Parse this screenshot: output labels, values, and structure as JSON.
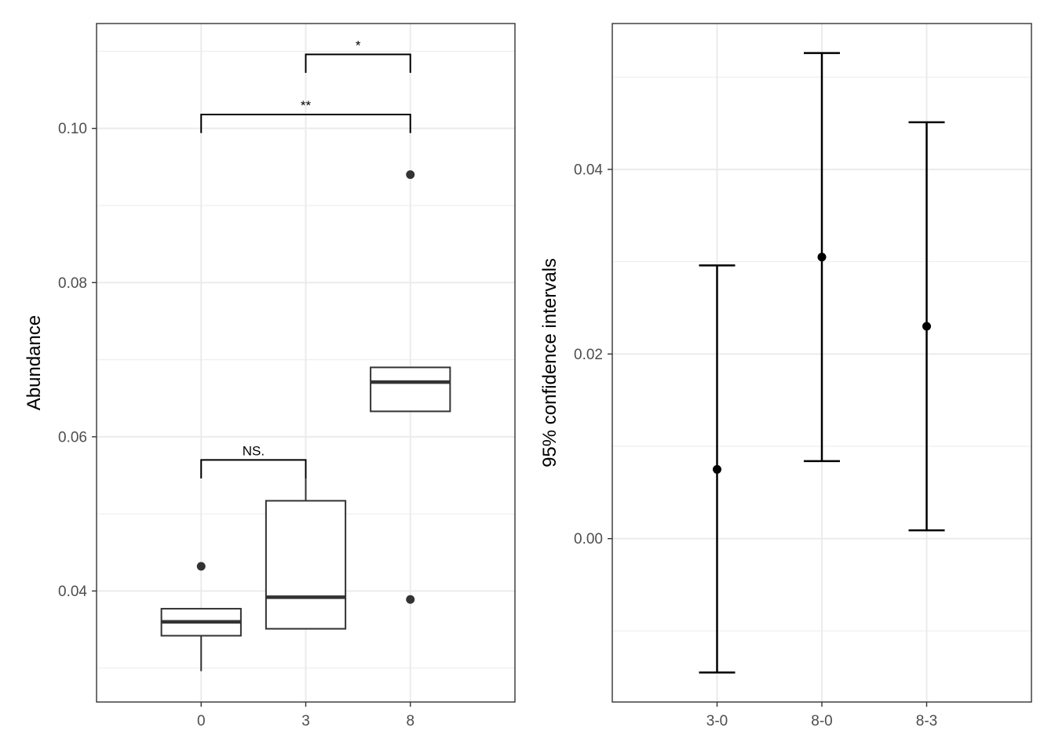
{
  "chart_data": [
    {
      "type": "box",
      "title": "",
      "xlabel": "",
      "ylabel": "Abundance",
      "ylim": [
        0.0256,
        0.1136
      ],
      "y_ticks": [
        0.04,
        0.06,
        0.08,
        0.1
      ],
      "y_tick_labels": [
        "0.04",
        "0.06",
        "0.08",
        "0.10"
      ],
      "grid": true,
      "categories": [
        "0",
        "3",
        "8"
      ],
      "boxes": [
        {
          "category": "0",
          "whisker_low": 0.0296,
          "q1": 0.0342,
          "median": 0.036,
          "q3": 0.0377,
          "whisker_high": 0.0377,
          "outliers": [
            0.0432
          ]
        },
        {
          "category": "3",
          "whisker_low": 0.0351,
          "q1": 0.0351,
          "median": 0.0392,
          "q3": 0.0517,
          "whisker_high": 0.0546,
          "outliers": []
        },
        {
          "category": "8",
          "whisker_low": 0.0633,
          "q1": 0.0633,
          "median": 0.0671,
          "q3": 0.069,
          "whisker_high": 0.069,
          "outliers": [
            0.094,
            0.0389
          ]
        }
      ],
      "annotations": [
        {
          "from": "0",
          "to": "3",
          "label": "NS.",
          "y": 0.057,
          "tick_bottom": 0.0546
        },
        {
          "from": "0",
          "to": "8",
          "label": "**",
          "y": 0.1018,
          "tick_bottom": 0.0994
        },
        {
          "from": "3",
          "to": "8",
          "label": "*",
          "y": 0.1096,
          "tick_bottom": 0.1072
        }
      ]
    },
    {
      "type": "errorbar",
      "title": "",
      "xlabel": "",
      "ylabel": "95% confidence intervals",
      "ylim": [
        -0.0177,
        0.0558
      ],
      "y_ticks": [
        0.0,
        0.02,
        0.04
      ],
      "y_tick_labels": [
        "0.00",
        "0.02",
        "0.04"
      ],
      "grid": true,
      "categories": [
        "3-0",
        "8-0",
        "8-3"
      ],
      "points": [
        {
          "category": "3-0",
          "estimate": 0.0075,
          "lower": -0.0145,
          "upper": 0.0296
        },
        {
          "category": "8-0",
          "estimate": 0.0305,
          "lower": 0.0084,
          "upper": 0.0526
        },
        {
          "category": "8-3",
          "estimate": 0.023,
          "lower": 0.0009,
          "upper": 0.0451
        }
      ]
    }
  ]
}
